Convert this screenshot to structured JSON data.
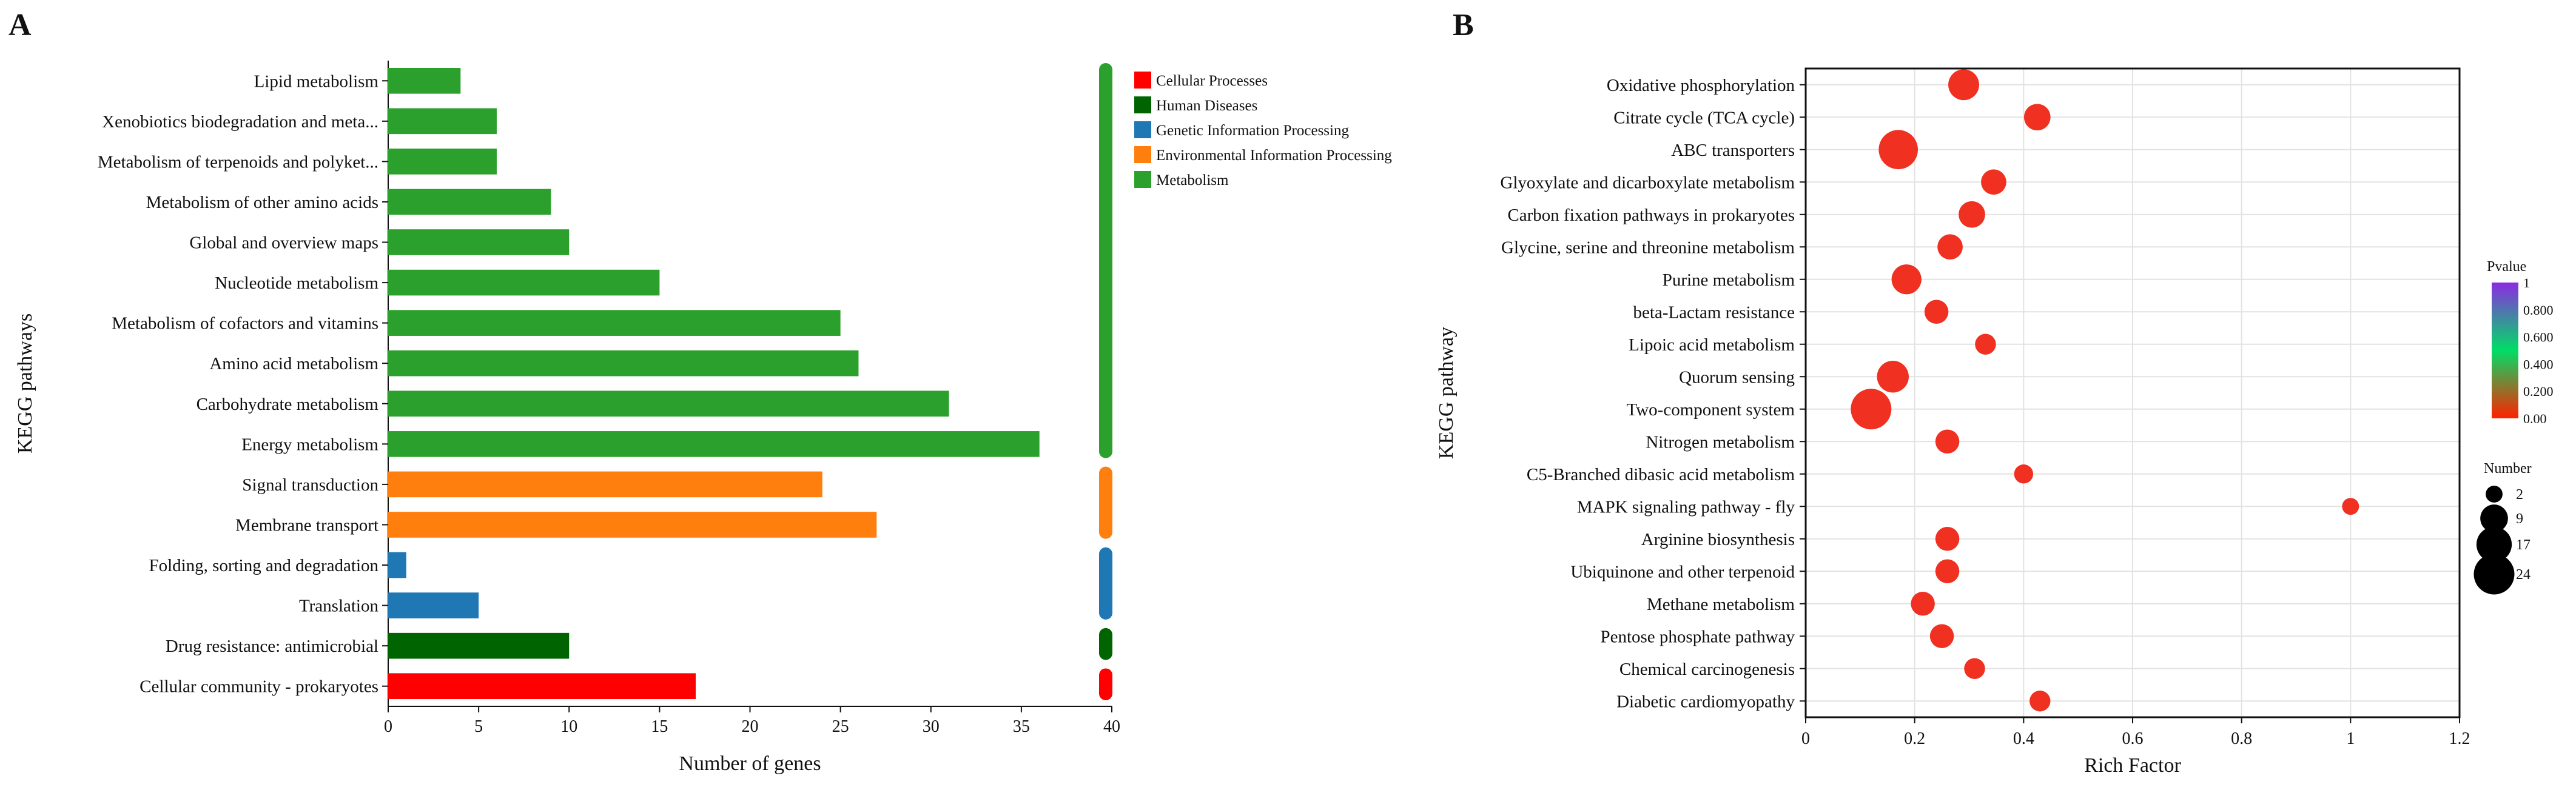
{
  "panels": {
    "a_letter": "A",
    "b_letter": "B"
  },
  "colors": {
    "Cellular Processes": "#ff0000",
    "Human Diseases": "#006400",
    "Genetic Information Processing": "#1f77b4",
    "Environmental Information Processing": "#ff7f0e",
    "Metabolism": "#2ca02c"
  },
  "chart_data": [
    {
      "type": "bar",
      "orientation": "horizontal",
      "title": "",
      "xlabel": "Number of genes",
      "ylabel": "KEGG pathways",
      "xlim": [
        0,
        40
      ],
      "xticks": [
        0,
        5,
        10,
        15,
        20,
        25,
        30,
        35,
        40
      ],
      "legend_position": "top-right",
      "categories": [
        "Lipid metabolism",
        "Xenobiotics biodegradation and meta...",
        "Metabolism of terpenoids and polyket...",
        "Metabolism of other amino acids",
        "Global and overview maps",
        "Nucleotide metabolism",
        "Metabolism of cofactors and vitamins",
        "Amino acid metabolism",
        "Carbohydrate metabolism",
        "Energy metabolism",
        "Signal transduction",
        "Membrane transport",
        "Folding, sorting and degradation",
        "Translation",
        "Drug resistance: antimicrobial",
        "Cellular community - prokaryotes"
      ],
      "values": [
        4,
        6,
        6,
        9,
        10,
        15,
        25,
        26,
        31,
        36,
        24,
        27,
        1,
        5,
        10,
        17
      ],
      "groups": [
        "Metabolism",
        "Metabolism",
        "Metabolism",
        "Metabolism",
        "Metabolism",
        "Metabolism",
        "Metabolism",
        "Metabolism",
        "Metabolism",
        "Metabolism",
        "Environmental Information Processing",
        "Environmental Information Processing",
        "Genetic Information Processing",
        "Genetic Information Processing",
        "Human Diseases",
        "Cellular Processes"
      ],
      "legend": [
        "Cellular Processes",
        "Human Diseases",
        "Genetic Information Processing",
        "Environmental Information Processing",
        "Metabolism"
      ]
    },
    {
      "type": "scatter",
      "title": "",
      "xlabel": "Rich Factor",
      "ylabel": "KEGG pathway",
      "xlim": [
        0,
        1.2
      ],
      "xticks": [
        0,
        0.2,
        0.4,
        0.6,
        0.8,
        1.0,
        1.2
      ],
      "xtick_labels": [
        "0",
        "0.2",
        "0.4",
        "0.6",
        "0.8",
        "1",
        "1.2"
      ],
      "grid": true,
      "categories": [
        "Oxidative phosphorylation",
        "Citrate cycle (TCA cycle)",
        "ABC transporters",
        "Glyoxylate and dicarboxylate metabolism",
        "Carbon fixation pathways in prokaryotes",
        "Glycine, serine and threonine metabolism",
        "Purine metabolism",
        "beta-Lactam resistance",
        "Lipoic acid metabolism",
        "Quorum sensing",
        "Two-component system",
        "Nitrogen metabolism",
        "C5-Branched dibasic acid metabolism",
        "MAPK signaling pathway - fly",
        "Arginine biosynthesis",
        "Ubiquinone and other terpenoid",
        "Methane metabolism",
        "Pentose phosphate pathway",
        "Chemical carcinogenesis",
        "Diabetic cardiomyopathy"
      ],
      "rich_factor": [
        0.29,
        0.425,
        0.17,
        0.345,
        0.305,
        0.265,
        0.185,
        0.24,
        0.33,
        0.16,
        0.12,
        0.26,
        0.4,
        1.0,
        0.26,
        0.26,
        0.215,
        0.25,
        0.31,
        0.43
      ],
      "number": [
        12,
        8,
        22,
        7,
        8,
        7,
        11,
        6,
        4,
        13,
        24,
        6,
        3,
        2,
        6,
        6,
        6,
        6,
        4,
        4
      ],
      "pvalue": [
        0.0,
        0.0,
        0.0,
        0.0,
        0.0,
        0.0,
        0.0,
        0.0,
        0.0,
        0.0,
        0.0,
        0.0,
        0.0,
        0.0,
        0.0,
        0.0,
        0.0,
        0.0,
        0.0,
        0.0
      ],
      "color_legend": {
        "title": "Pvalue",
        "ticks": [
          "1",
          "0.800",
          "0.600",
          "0.400",
          "0.200",
          "0.00"
        ],
        "tick_values": [
          1,
          0.8,
          0.6,
          0.4,
          0.2,
          0
        ],
        "stops": [
          "#ff2200",
          "#00dd66",
          "#8a2be2"
        ]
      },
      "size_legend": {
        "title": "Number",
        "values": [
          2,
          9,
          17,
          24
        ],
        "labels": [
          "2",
          "9",
          "17",
          "24"
        ]
      },
      "point_color": "#f03020"
    }
  ]
}
